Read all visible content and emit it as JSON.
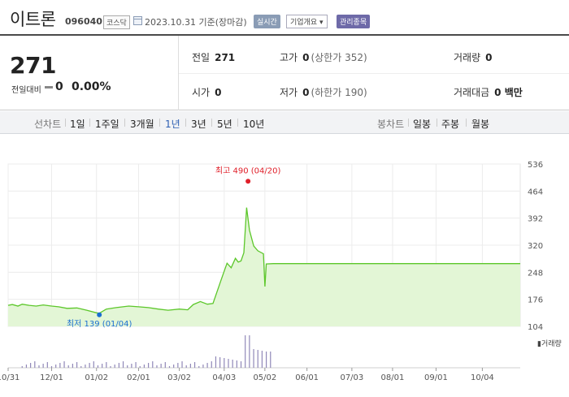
{
  "header": {
    "stock_name": "이트론",
    "stock_code": "096040",
    "market": "코스닥",
    "date": "2023.10.31 기준(장마감)",
    "realtime_btn": "실시간",
    "company_btn": "기업개요 ▾",
    "managed_badge": "관리종목"
  },
  "summary": {
    "price": "271",
    "change_label": "전일대비",
    "change_value": "0",
    "change_rate": "0.00%",
    "prev_close_label": "전일",
    "prev_close": "271",
    "high_label": "고가",
    "high": "0",
    "upper_limit": "(상한가 352)",
    "volume_label": "거래량",
    "volume": "0",
    "open_label": "시가",
    "open": "0",
    "low_label": "저가",
    "low": "0",
    "lower_limit": "(하한가 190)",
    "amount_label": "거래대금",
    "amount": "0 백만"
  },
  "periods": {
    "line_label": "선차트",
    "line_items": [
      "1일",
      "1주일",
      "3개월",
      "1년",
      "3년",
      "5년",
      "10년"
    ],
    "active": "1년",
    "candle_label": "봉차트",
    "candle_items": [
      "일봉",
      "주봉",
      "월봉"
    ]
  },
  "colors": {
    "line": "#5cc72a",
    "area": "#e3f6d6",
    "high_marker": "#e0202a",
    "low_marker": "#1a6fd1",
    "volume_bar": "#9088b8"
  },
  "chart_data": {
    "type": "area",
    "ylim": [
      104,
      536
    ],
    "y_ticks": [
      "536",
      "464",
      "392",
      "320",
      "248",
      "176",
      "104"
    ],
    "x_tick_labels": [
      "10/31",
      "12/01",
      "01/02",
      "02/01",
      "03/02",
      "04/03",
      "05/02",
      "06/01",
      "07/03",
      "08/01",
      "09/01",
      "10/04"
    ],
    "high_annotation": "최고 490 (04/20)",
    "low_annotation": "최저 139 (01/04)",
    "high_point": {
      "x": "04/20",
      "y": 490
    },
    "low_point": {
      "x": "01/04",
      "y": 139
    },
    "volume_label": "거래량",
    "series": [
      {
        "values": [
          [
            "10/31",
            160
          ],
          [
            "11/03",
            162
          ],
          [
            "11/07",
            158
          ],
          [
            "11/10",
            163
          ],
          [
            "11/15",
            160
          ],
          [
            "11/20",
            158
          ],
          [
            "11/25",
            161
          ],
          [
            "12/01",
            158
          ],
          [
            "12/06",
            156
          ],
          [
            "12/12",
            152
          ],
          [
            "12/19",
            153
          ],
          [
            "12/26",
            147
          ],
          [
            "01/02",
            140
          ],
          [
            "01/04",
            139
          ],
          [
            "01/09",
            150
          ],
          [
            "01/16",
            154
          ],
          [
            "01/25",
            158
          ],
          [
            "02/01",
            156
          ],
          [
            "02/08",
            154
          ],
          [
            "02/15",
            150
          ],
          [
            "02/22",
            147
          ],
          [
            "03/02",
            150
          ],
          [
            "03/08",
            148
          ],
          [
            "03/12",
            162
          ],
          [
            "03/17",
            170
          ],
          [
            "03/22",
            163
          ],
          [
            "03/26",
            165
          ],
          [
            "04/01",
            230
          ],
          [
            "04/05",
            272
          ],
          [
            "04/08",
            260
          ],
          [
            "04/11",
            285
          ],
          [
            "04/13",
            275
          ],
          [
            "04/15",
            278
          ],
          [
            "04/17",
            300
          ],
          [
            "04/19",
            420
          ],
          [
            "04/21",
            360
          ],
          [
            "04/24",
            318
          ],
          [
            "04/27",
            305
          ],
          [
            "05/01",
            297
          ],
          [
            "05/02",
            210
          ],
          [
            "05/03",
            270
          ],
          [
            "05/08",
            271
          ],
          [
            "06/01",
            271
          ],
          [
            "07/03",
            271
          ],
          [
            "08/01",
            271
          ],
          [
            "09/01",
            271
          ],
          [
            "10/04",
            271
          ],
          [
            "10/31",
            271
          ]
        ]
      }
    ]
  }
}
